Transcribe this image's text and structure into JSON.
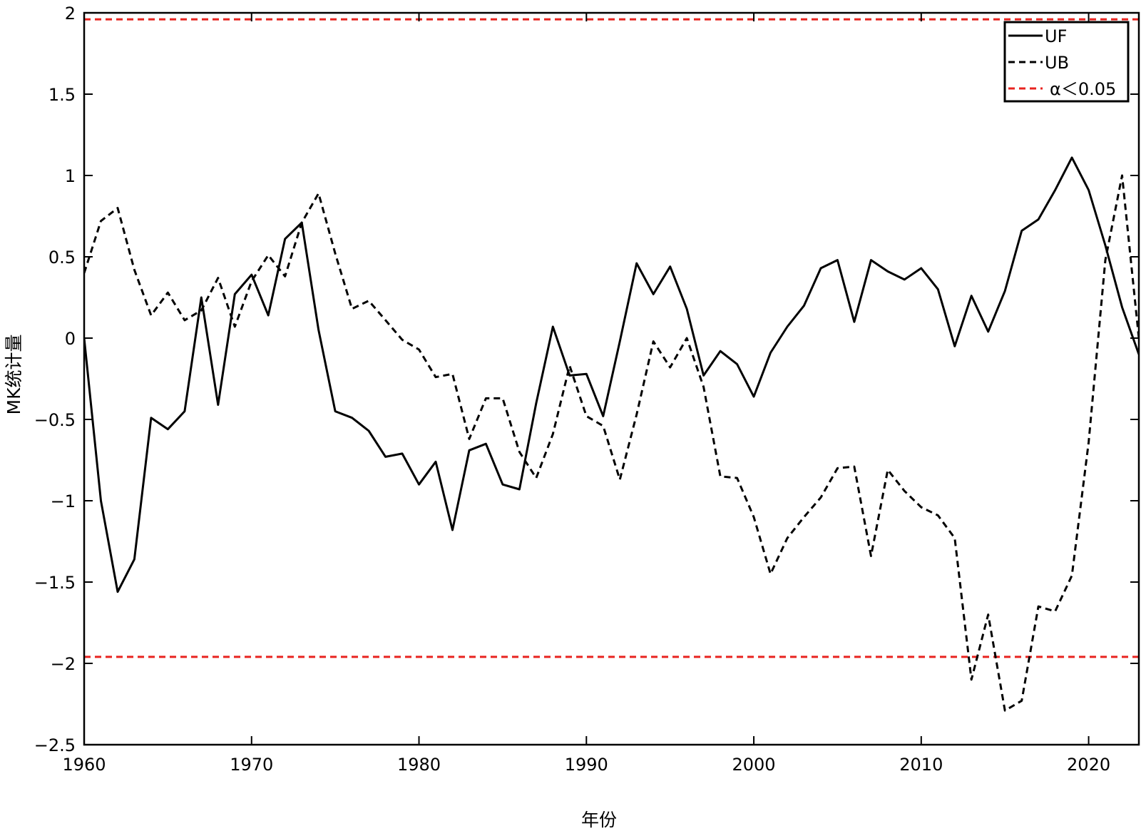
{
  "chart_data": {
    "type": "line",
    "title": "",
    "xlabel": "年份",
    "ylabel": "MK统计量",
    "xlim": [
      1960,
      2023
    ],
    "ylim": [
      -2.5,
      2
    ],
    "xticks": [
      1960,
      1970,
      1980,
      1990,
      2000,
      2010,
      2020
    ],
    "yticks": [
      -2.5,
      -2,
      -1.5,
      -1,
      -0.5,
      0,
      0.5,
      1,
      1.5,
      2
    ],
    "ytick_labels": [
      "−2.5",
      "−2",
      "−1.5",
      "−1",
      "−0.5",
      "0",
      "0.5",
      "1",
      "1.5",
      "2"
    ],
    "grid": false,
    "legend_position": "top-right",
    "x": [
      1960,
      1961,
      1962,
      1963,
      1964,
      1965,
      1966,
      1967,
      1968,
      1969,
      1970,
      1971,
      1972,
      1973,
      1974,
      1975,
      1976,
      1977,
      1978,
      1979,
      1980,
      1981,
      1982,
      1983,
      1984,
      1985,
      1986,
      1987,
      1988,
      1989,
      1990,
      1991,
      1992,
      1993,
      1994,
      1995,
      1996,
      1997,
      1998,
      1999,
      2000,
      2001,
      2002,
      2003,
      2004,
      2005,
      2006,
      2007,
      2008,
      2009,
      2010,
      2011,
      2012,
      2013,
      2014,
      2015,
      2016,
      2017,
      2018,
      2019,
      2020,
      2021,
      2022,
      2023
    ],
    "series": [
      {
        "name": "UF",
        "style": "solid",
        "color": "#000000",
        "values": [
          0,
          -1.0,
          -1.56,
          -1.36,
          -0.49,
          -0.56,
          -0.45,
          0.25,
          -0.41,
          0.27,
          0.39,
          0.14,
          0.61,
          0.71,
          0.05,
          -0.45,
          -0.49,
          -0.57,
          -0.73,
          -0.71,
          -0.9,
          -0.76,
          -1.18,
          -0.69,
          -0.65,
          -0.9,
          -0.93,
          -0.4,
          0.07,
          -0.23,
          -0.22,
          -0.48,
          -0.02,
          0.46,
          0.27,
          0.44,
          0.18,
          -0.23,
          -0.08,
          -0.16,
          -0.36,
          -0.09,
          0.07,
          0.2,
          0.43,
          0.48,
          0.1,
          0.48,
          0.41,
          0.36,
          0.43,
          0.3,
          -0.05,
          0.26,
          0.04,
          0.29,
          0.66,
          0.73,
          0.91,
          1.11,
          0.91,
          0.57,
          0.19,
          -0.1
        ]
      },
      {
        "name": "UB",
        "style": "dashed",
        "color": "#000000",
        "values": [
          0.4,
          0.72,
          0.8,
          0.42,
          0.14,
          0.28,
          0.11,
          0.17,
          0.37,
          0.07,
          0.35,
          0.51,
          0.38,
          0.71,
          0.89,
          0.52,
          0.18,
          0.23,
          0.11,
          -0.01,
          -0.07,
          -0.24,
          -0.22,
          -0.62,
          -0.37,
          -0.37,
          -0.7,
          -0.86,
          -0.59,
          -0.17,
          -0.48,
          -0.54,
          -0.87,
          -0.47,
          -0.02,
          -0.18,
          0.0,
          -0.3,
          -0.85,
          -0.86,
          -1.1,
          -1.45,
          -1.23,
          -1.1,
          -0.98,
          -0.8,
          -0.79,
          -1.34,
          -0.81,
          -0.94,
          -1.04,
          -1.09,
          -1.23,
          -2.1,
          -1.7,
          -2.29,
          -2.23,
          -1.65,
          -1.68,
          -1.46,
          -0.64,
          0.48,
          1.0,
          0.0
        ]
      },
      {
        "name": "α＜0.05",
        "style": "dashed",
        "color": "#e8231f",
        "levels": [
          1.96,
          -1.96
        ]
      }
    ]
  }
}
